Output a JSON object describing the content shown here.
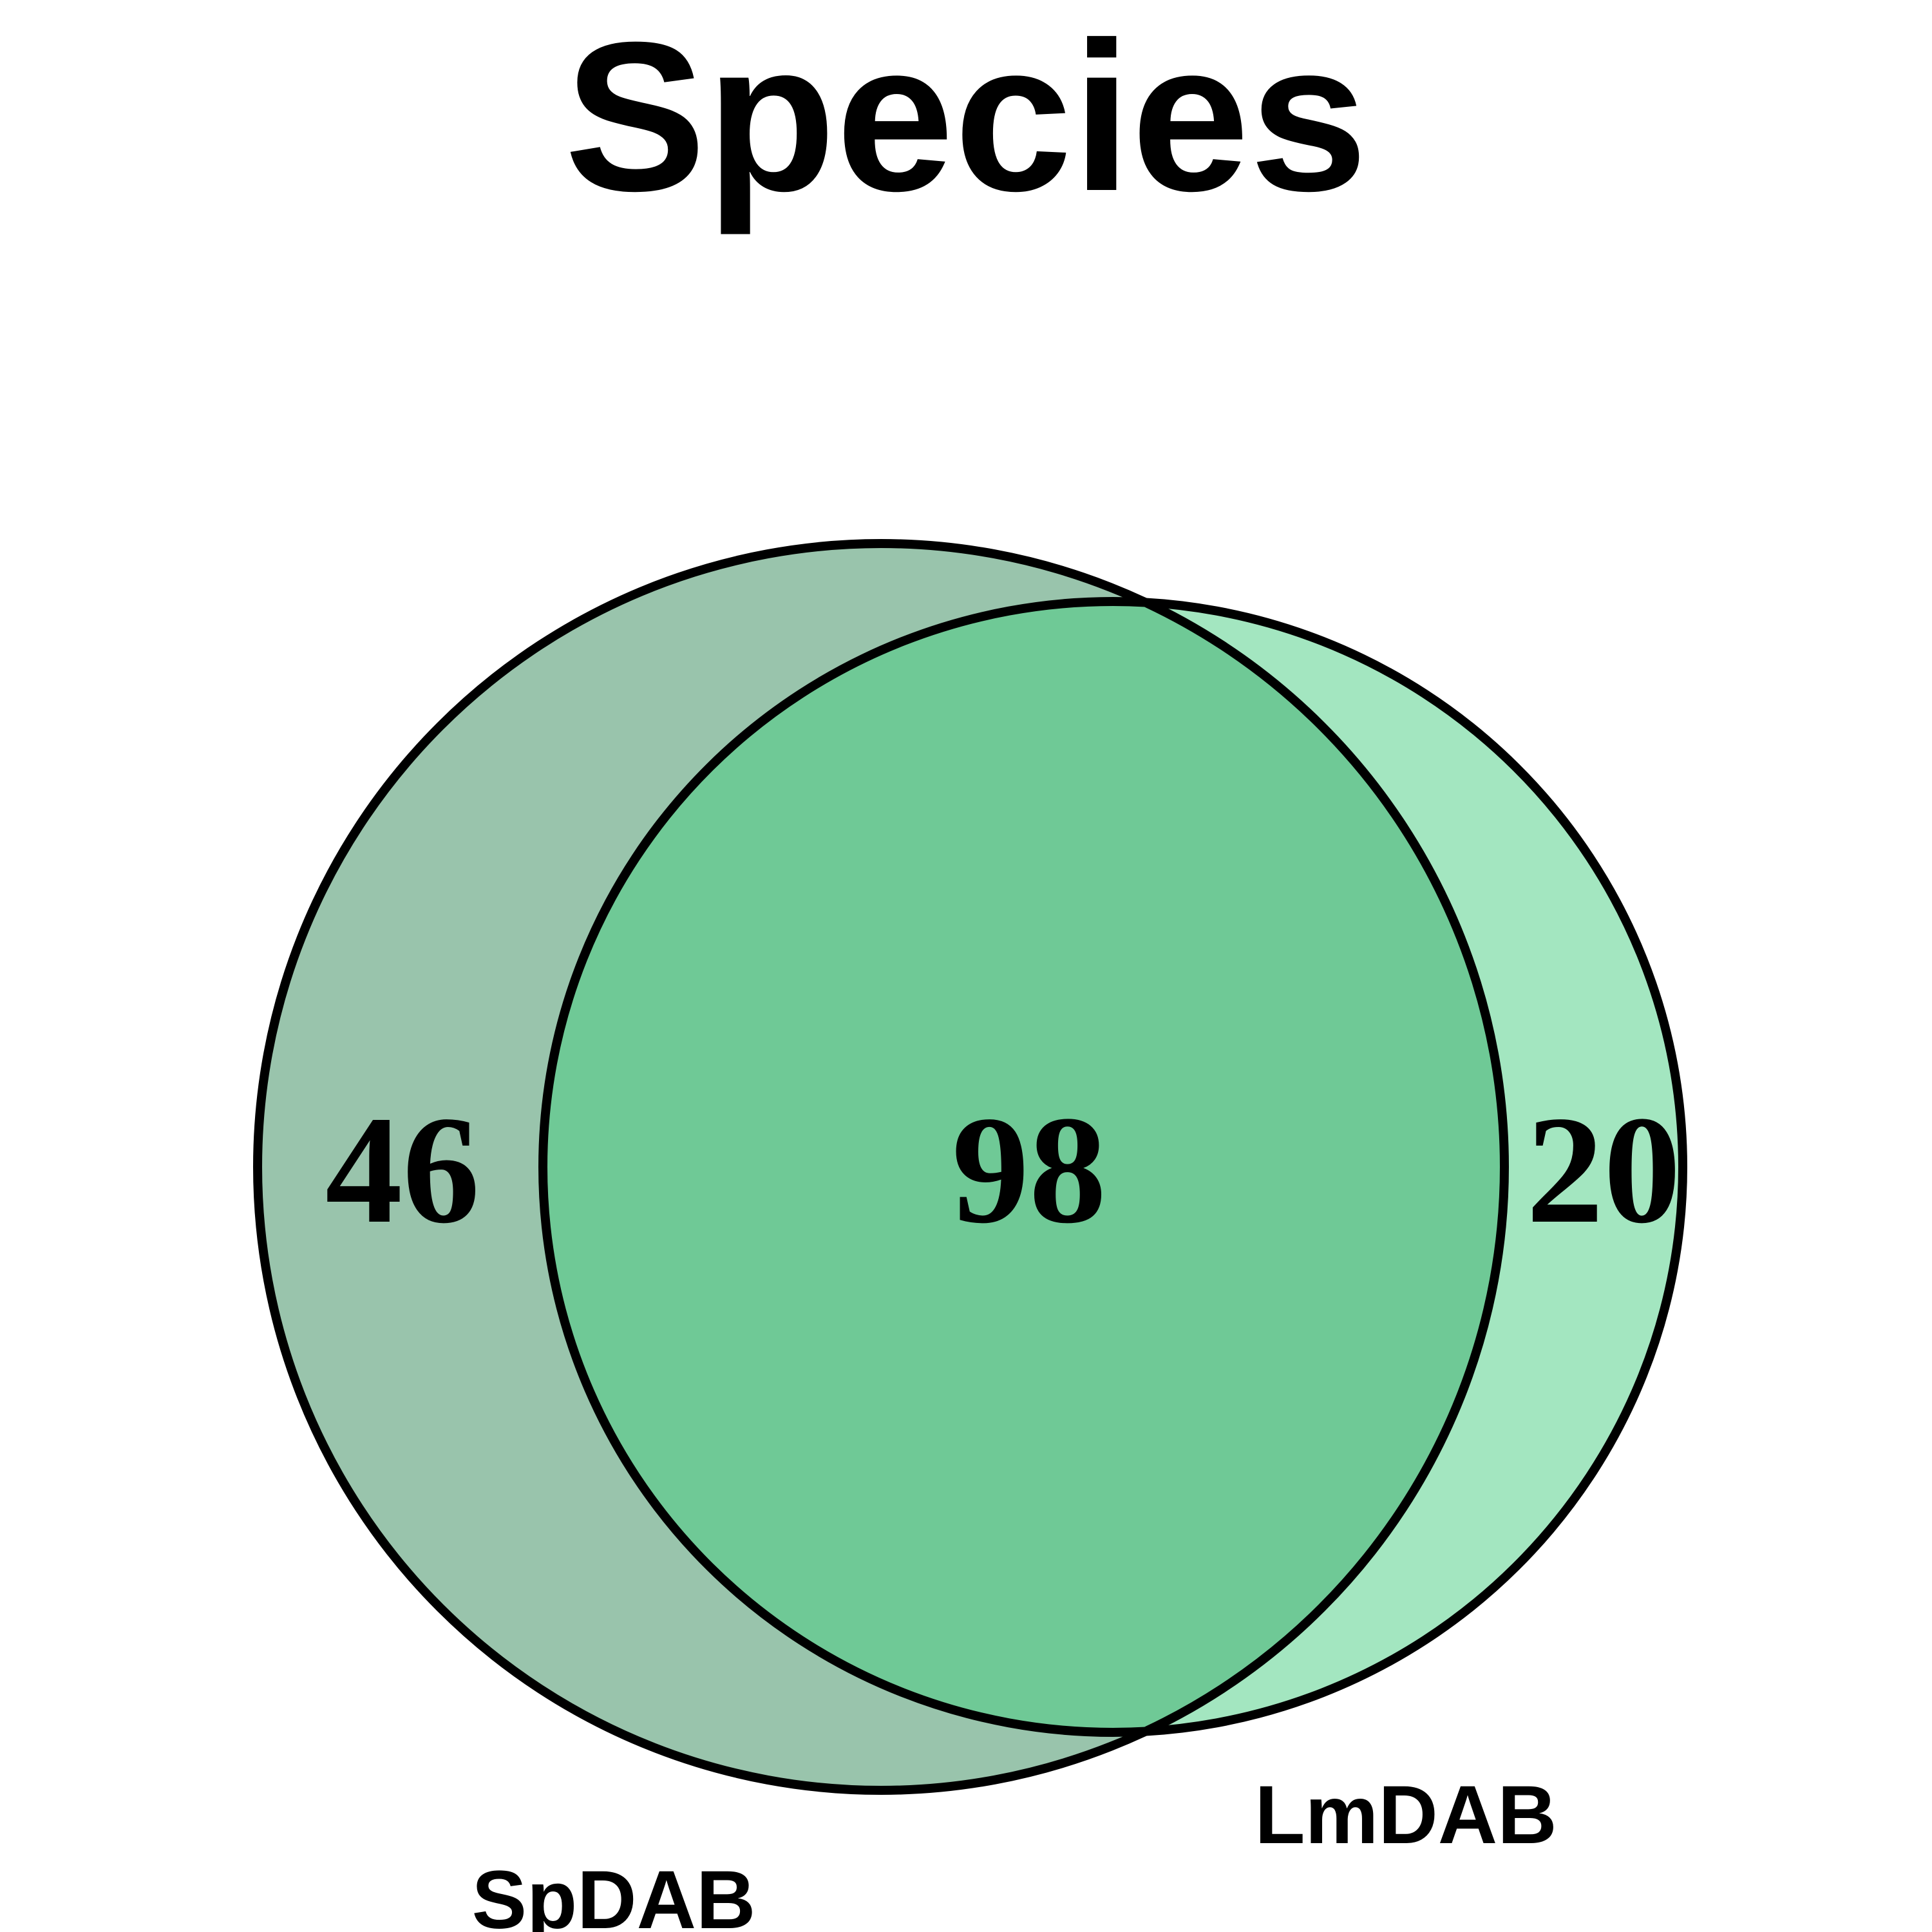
{
  "title": "Species",
  "sets": [
    {
      "name": "SpDAB",
      "only_count": "46",
      "color": "#99c4ac"
    },
    {
      "name": "LmDAB",
      "only_count": "20",
      "color": "#a3e6c0"
    }
  ],
  "intersection": {
    "count": "98",
    "color": "#6fc996"
  },
  "outline_color": "#000000"
}
